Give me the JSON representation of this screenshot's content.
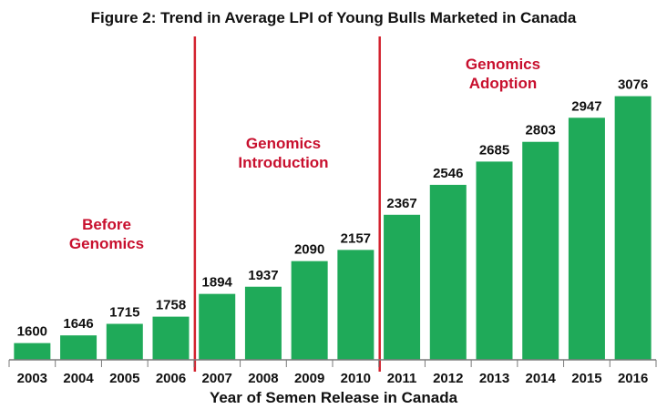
{
  "chart_data": {
    "type": "bar",
    "title": "Figure 2: Trend in Average LPI of Young Bulls Marketed in Canada",
    "xlabel": "Year of Semen Release in Canada",
    "ylabel": "",
    "categories": [
      "2003",
      "2004",
      "2005",
      "2006",
      "2007",
      "2008",
      "2009",
      "2010",
      "2011",
      "2012",
      "2013",
      "2014",
      "2015",
      "2016"
    ],
    "values": [
      1600,
      1646,
      1715,
      1758,
      1894,
      1937,
      2090,
      2157,
      2367,
      2546,
      2685,
      2803,
      2947,
      3076
    ],
    "ylim": [
      1500,
      3150
    ],
    "grid": false,
    "legend": "none",
    "bar_color": "#1faa59",
    "divider_color": "#d3222e",
    "annotation_color": "#c8102e",
    "dividers": [
      {
        "between": [
          "2006",
          "2007"
        ]
      },
      {
        "between": [
          "2010",
          "2011"
        ]
      }
    ],
    "annotations": [
      {
        "lines": [
          "Before",
          "Genomics"
        ],
        "near": "2004-2005"
      },
      {
        "lines": [
          "Genomics",
          "Introduction"
        ],
        "near": "2008-2009"
      },
      {
        "lines": [
          "Genomics",
          "Adoption"
        ],
        "near": "2012-2013"
      }
    ]
  }
}
